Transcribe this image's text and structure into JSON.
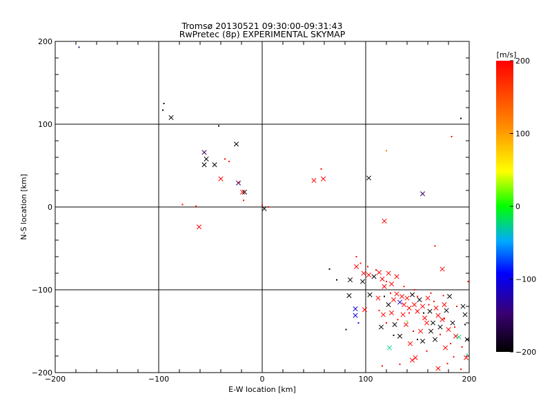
{
  "chart_data": {
    "type": "scatter",
    "title": "Tromsø 20130521 09:30:00-09:31:43",
    "subtitle": "RwPretec (8p) EXPERIMENTAL SKYMAP",
    "xlabel": "E-W location [km]",
    "ylabel": "N-S location [km]",
    "xlim": [
      -200,
      200
    ],
    "ylim": [
      -200,
      200
    ],
    "xticks": [
      "-200",
      "-100",
      "0",
      "100",
      "200"
    ],
    "yticks": [
      "-200",
      "-100",
      "0",
      "100",
      "200"
    ],
    "grid": true,
    "colorbar": {
      "label": "[m/s]",
      "range": [
        -200,
        200
      ],
      "ticks": [
        "200",
        "100",
        "0",
        "-100",
        "-200"
      ],
      "colormap": [
        "#000000",
        "#3a0070",
        "#0000ff",
        "#00aaff",
        "#00ff00",
        "#ffff00",
        "#ff8800",
        "#ff0000"
      ]
    },
    "series": [
      {
        "marker": "x",
        "points": [
          {
            "x": -88,
            "y": 108,
            "v": -200
          },
          {
            "x": -56,
            "y": 66,
            "v": -150
          },
          {
            "x": -54,
            "y": 58,
            "v": -200
          },
          {
            "x": -56,
            "y": 51,
            "v": -200
          },
          {
            "x": -46,
            "y": 51,
            "v": -200
          },
          {
            "x": -40,
            "y": 34,
            "v": 200
          },
          {
            "x": -25,
            "y": 76,
            "v": -200
          },
          {
            "x": -23,
            "y": 29,
            "v": -150
          },
          {
            "x": -19,
            "y": 18,
            "v": 200
          },
          {
            "x": -17,
            "y": 18,
            "v": -200
          },
          {
            "x": -61,
            "y": -24,
            "v": 200
          },
          {
            "x": 2,
            "y": -2,
            "v": -200
          },
          {
            "x": 50,
            "y": 32,
            "v": 200
          },
          {
            "x": 59,
            "y": 34,
            "v": 200
          },
          {
            "x": 103,
            "y": 35,
            "v": -200
          },
          {
            "x": 155,
            "y": 16,
            "v": -150
          },
          {
            "x": 118,
            "y": -17,
            "v": 200
          },
          {
            "x": 174,
            "y": -75,
            "v": 200
          },
          {
            "x": 91,
            "y": -72,
            "v": 200
          },
          {
            "x": 85,
            "y": -88,
            "v": -200
          },
          {
            "x": 97,
            "y": -90,
            "v": -200
          },
          {
            "x": 98,
            "y": -80,
            "v": 200
          },
          {
            "x": 103,
            "y": -82,
            "v": 200
          },
          {
            "x": 108,
            "y": -84,
            "v": -200
          },
          {
            "x": 113,
            "y": -79,
            "v": 200
          },
          {
            "x": 116,
            "y": -87,
            "v": 200
          },
          {
            "x": 118,
            "y": -96,
            "v": 200
          },
          {
            "x": 122,
            "y": -80,
            "v": 200
          },
          {
            "x": 125,
            "y": -93,
            "v": 200
          },
          {
            "x": 130,
            "y": -84,
            "v": 200
          },
          {
            "x": 84,
            "y": -107,
            "v": -200
          },
          {
            "x": 90,
            "y": -123,
            "v": -100
          },
          {
            "x": 90,
            "y": -131,
            "v": -100
          },
          {
            "x": 99,
            "y": -124,
            "v": 200
          },
          {
            "x": 117,
            "y": -130,
            "v": 200
          },
          {
            "x": 115,
            "y": -145,
            "v": -200
          },
          {
            "x": 122,
            "y": -118,
            "v": -200
          },
          {
            "x": 127,
            "y": -112,
            "v": 200
          },
          {
            "x": 130,
            "y": -105,
            "v": 200
          },
          {
            "x": 133,
            "y": -115,
            "v": -100
          },
          {
            "x": 135,
            "y": -108,
            "v": 200
          },
          {
            "x": 137,
            "y": -118,
            "v": 200
          },
          {
            "x": 140,
            "y": -110,
            "v": 200
          },
          {
            "x": 142,
            "y": -122,
            "v": 200
          },
          {
            "x": 145,
            "y": -106,
            "v": -200
          },
          {
            "x": 147,
            "y": -118,
            "v": 200
          },
          {
            "x": 150,
            "y": -126,
            "v": 200
          },
          {
            "x": 152,
            "y": -112,
            "v": -200
          },
          {
            "x": 155,
            "y": -120,
            "v": 200
          },
          {
            "x": 157,
            "y": -134,
            "v": 200
          },
          {
            "x": 160,
            "y": -110,
            "v": 200
          },
          {
            "x": 162,
            "y": -126,
            "v": -200
          },
          {
            "x": 165,
            "y": -140,
            "v": -200
          },
          {
            "x": 168,
            "y": -122,
            "v": 200
          },
          {
            "x": 170,
            "y": -131,
            "v": 200
          },
          {
            "x": 172,
            "y": -145,
            "v": -200
          },
          {
            "x": 174,
            "y": -136,
            "v": 200
          },
          {
            "x": 176,
            "y": -118,
            "v": 200
          },
          {
            "x": 178,
            "y": -125,
            "v": -200
          },
          {
            "x": 180,
            "y": -148,
            "v": 200
          },
          {
            "x": 184,
            "y": -140,
            "v": -200
          },
          {
            "x": 187,
            "y": -156,
            "v": 200
          },
          {
            "x": 190,
            "y": -157,
            "v": 0
          },
          {
            "x": 194,
            "y": -120,
            "v": -200
          },
          {
            "x": 196,
            "y": -130,
            "v": -200
          },
          {
            "x": 198,
            "y": -160,
            "v": -200
          },
          {
            "x": 197,
            "y": -182,
            "v": 200
          },
          {
            "x": 123,
            "y": -170,
            "v": 0
          },
          {
            "x": 133,
            "y": -156,
            "v": -200
          },
          {
            "x": 139,
            "y": -142,
            "v": 200
          },
          {
            "x": 143,
            "y": -165,
            "v": 200
          },
          {
            "x": 148,
            "y": -182,
            "v": 200
          },
          {
            "x": 155,
            "y": -162,
            "v": -200
          },
          {
            "x": 163,
            "y": -150,
            "v": -200
          },
          {
            "x": 170,
            "y": -195,
            "v": 200
          },
          {
            "x": 177,
            "y": -170,
            "v": 200
          },
          {
            "x": 145,
            "y": -185,
            "v": 200
          },
          {
            "x": 136,
            "y": -130,
            "v": 200
          },
          {
            "x": 128,
            "y": -142,
            "v": -200
          },
          {
            "x": 125,
            "y": -128,
            "v": 200
          },
          {
            "x": 112,
            "y": -110,
            "v": 200
          },
          {
            "x": 104,
            "y": -106,
            "v": -200
          },
          {
            "x": 159,
            "y": -140,
            "v": 200
          },
          {
            "x": 167,
            "y": -160,
            "v": -200
          },
          {
            "x": 153,
            "y": -150,
            "v": 200
          },
          {
            "x": 181,
            "y": -108,
            "v": -200
          }
        ]
      },
      {
        "marker": "dot",
        "points": [
          {
            "x": -177,
            "y": 193,
            "v": -150
          },
          {
            "x": -95,
            "y": 125,
            "v": -200
          },
          {
            "x": -96,
            "y": 117,
            "v": -200
          },
          {
            "x": -42,
            "y": 98,
            "v": -200
          },
          {
            "x": -36,
            "y": 58,
            "v": 200
          },
          {
            "x": -32,
            "y": 55,
            "v": 200
          },
          {
            "x": -22,
            "y": 30,
            "v": 200
          },
          {
            "x": -18,
            "y": 8,
            "v": 200
          },
          {
            "x": -77,
            "y": 3,
            "v": 200
          },
          {
            "x": -64,
            "y": 1,
            "v": 200
          },
          {
            "x": 0,
            "y": 2,
            "v": 200
          },
          {
            "x": 6,
            "y": 0,
            "v": 200
          },
          {
            "x": 57,
            "y": 46,
            "v": 200
          },
          {
            "x": 120,
            "y": 68,
            "v": 150
          },
          {
            "x": 183,
            "y": 85,
            "v": 200
          },
          {
            "x": 192,
            "y": 107,
            "v": -200
          },
          {
            "x": 167,
            "y": -47,
            "v": 200
          },
          {
            "x": 65,
            "y": -75,
            "v": -200
          },
          {
            "x": 72,
            "y": -88,
            "v": -200
          },
          {
            "x": 91,
            "y": -60,
            "v": 200
          },
          {
            "x": 95,
            "y": -68,
            "v": 200
          },
          {
            "x": 102,
            "y": -72,
            "v": 200
          },
          {
            "x": 110,
            "y": -76,
            "v": 200
          },
          {
            "x": 120,
            "y": -90,
            "v": 200
          },
          {
            "x": 137,
            "y": -96,
            "v": 200
          },
          {
            "x": 147,
            "y": -100,
            "v": 200
          },
          {
            "x": 163,
            "y": -104,
            "v": 200
          },
          {
            "x": 81,
            "y": -148,
            "v": -200
          },
          {
            "x": 93,
            "y": -140,
            "v": -100
          },
          {
            "x": 113,
            "y": -125,
            "v": 200
          },
          {
            "x": 120,
            "y": -140,
            "v": 200
          },
          {
            "x": 127,
            "y": -155,
            "v": -200
          },
          {
            "x": 140,
            "y": -138,
            "v": 50
          },
          {
            "x": 146,
            "y": -150,
            "v": 200
          },
          {
            "x": 156,
            "y": -128,
            "v": -200
          },
          {
            "x": 161,
            "y": -118,
            "v": 200
          },
          {
            "x": 172,
            "y": -154,
            "v": 200
          },
          {
            "x": 182,
            "y": -165,
            "v": 200
          },
          {
            "x": 185,
            "y": -181,
            "v": 200
          },
          {
            "x": 198,
            "y": -178,
            "v": 0
          },
          {
            "x": 192,
            "y": -196,
            "v": 200
          },
          {
            "x": 133,
            "y": -190,
            "v": 200
          },
          {
            "x": 116,
            "y": -192,
            "v": 200
          },
          {
            "x": 159,
            "y": -174,
            "v": 200
          },
          {
            "x": 179,
            "y": -189,
            "v": 200
          },
          {
            "x": 166,
            "y": -114,
            "v": 200
          },
          {
            "x": 150,
            "y": -108,
            "v": 200
          },
          {
            "x": 175,
            "y": -107,
            "v": 200
          },
          {
            "x": 188,
            "y": -120,
            "v": 200
          },
          {
            "x": 196,
            "y": -142,
            "v": -200
          },
          {
            "x": 199,
            "y": -90,
            "v": 200
          },
          {
            "x": 124,
            "y": -104,
            "v": 200
          },
          {
            "x": 118,
            "y": -108,
            "v": -200
          },
          {
            "x": 142,
            "y": -128,
            "v": 200
          },
          {
            "x": 131,
            "y": -136,
            "v": 200
          },
          {
            "x": 150,
            "y": -160,
            "v": -200
          },
          {
            "x": 176,
            "y": -135,
            "v": 200
          },
          {
            "x": 186,
            "y": -145,
            "v": 200
          },
          {
            "x": 193,
            "y": -169,
            "v": 200
          }
        ]
      }
    ]
  }
}
